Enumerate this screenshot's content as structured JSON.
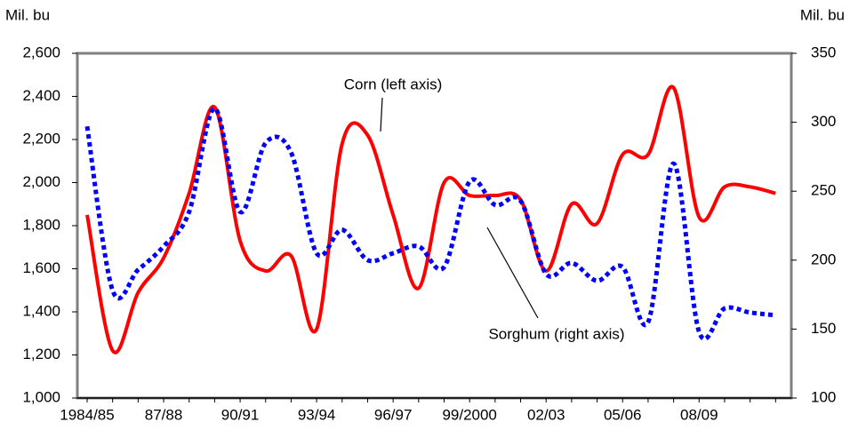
{
  "chart_data": {
    "type": "line",
    "ylabel": "Mil. bu",
    "y2label": "Mil. bu",
    "categories": [
      "1984/85",
      null,
      null,
      "87/88",
      null,
      null,
      "90/91",
      null,
      null,
      "93/94",
      null,
      null,
      "96/97",
      null,
      null,
      "99/2000",
      null,
      null,
      "02/03",
      null,
      null,
      "05/06",
      null,
      null,
      "08/09",
      null,
      null,
      null
    ],
    "series": [
      {
        "name": "Corn (left axis)",
        "color": "#ff0000",
        "axis": "y",
        "style": "solid",
        "values": [
          1850,
          1220,
          1490,
          1650,
          1950,
          2350,
          1730,
          1590,
          1660,
          1320,
          2180,
          2220,
          1850,
          1510,
          2000,
          1940,
          1940,
          1920,
          1590,
          1900,
          1810,
          2130,
          2130,
          2440,
          1840,
          1980,
          1980,
          1950
        ]
      },
      {
        "name": "Sorghum (right axis)",
        "color": "#0000ff",
        "axis": "y2",
        "style": "dotted",
        "values": [
          297,
          178,
          193,
          210,
          235,
          310,
          235,
          285,
          278,
          205,
          222,
          200,
          205,
          210,
          195,
          257,
          240,
          243,
          190,
          198,
          185,
          195,
          155,
          270,
          148,
          165,
          162,
          160
        ]
      }
    ],
    "ylim": [
      1000,
      2600
    ],
    "yticks": [
      {
        "value": 1000,
        "label": "1,000"
      },
      {
        "value": 1200,
        "label": "1,200"
      },
      {
        "value": 1400,
        "label": "1,400"
      },
      {
        "value": 1600,
        "label": "1,600"
      },
      {
        "value": 1800,
        "label": "1,800"
      },
      {
        "value": 2000,
        "label": "2,000"
      },
      {
        "value": 2200,
        "label": "2,200"
      },
      {
        "value": 2400,
        "label": "2,400"
      },
      {
        "value": 2600,
        "label": "2,600"
      }
    ],
    "y2lim": [
      100,
      350
    ],
    "y2ticks": [
      100,
      150,
      200,
      250,
      300,
      350
    ],
    "grid": false
  }
}
